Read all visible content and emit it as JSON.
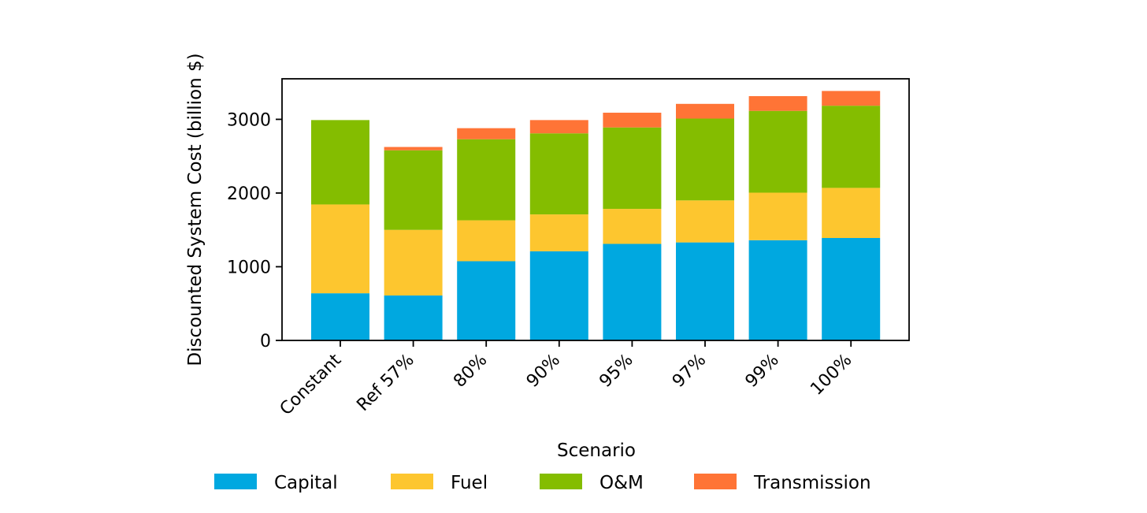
{
  "chart_data": {
    "type": "bar",
    "stacked": true,
    "categories": [
      "Constant",
      "Ref 57%",
      "80%",
      "90%",
      "95%",
      "97%",
      "99%",
      "100%"
    ],
    "series": [
      {
        "name": "Capital",
        "color": "#00A8E0",
        "values": [
          640,
          610,
          1075,
          1210,
          1310,
          1330,
          1360,
          1390
        ]
      },
      {
        "name": "Fuel",
        "color": "#FDC62F",
        "values": [
          1205,
          890,
          555,
          500,
          475,
          570,
          645,
          680
        ]
      },
      {
        "name": "O&M",
        "color": "#84BD00",
        "values": [
          1145,
          1080,
          1100,
          1100,
          1105,
          1110,
          1110,
          1115
        ]
      },
      {
        "name": "Transmission",
        "color": "#FF7436",
        "values": [
          0,
          45,
          150,
          180,
          200,
          200,
          200,
          200
        ]
      }
    ],
    "xlabel": "Scenario",
    "ylabel": "Discounted System Cost (billion $)",
    "ylim": [
      0,
      3550
    ],
    "yticks": [
      "0",
      "1000",
      "2000",
      "3000"
    ],
    "grid": false,
    "legend_position": "bottom"
  }
}
